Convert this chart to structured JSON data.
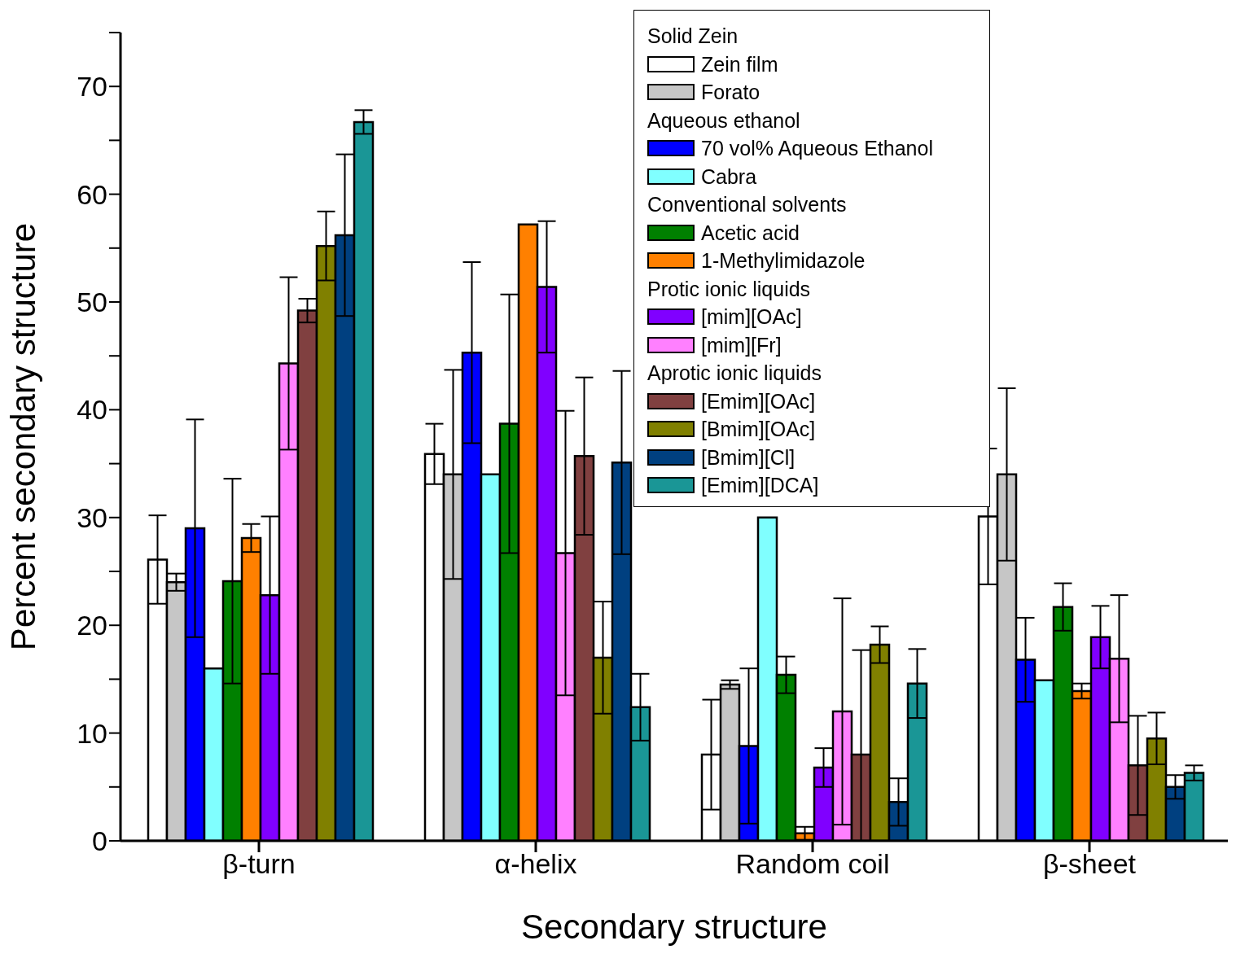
{
  "chart_data": {
    "type": "bar",
    "xlabel": "Secondary structure",
    "ylabel": "Percent secondary structure",
    "categories": [
      "β-turn",
      "α-helix",
      "Random coil",
      "β-sheet"
    ],
    "ylim": [
      0,
      75
    ],
    "yticks": [
      0,
      {
        "value": 5,
        "label": null
      },
      10,
      {
        "value": 15,
        "label": null
      },
      20,
      {
        "value": 25,
        "label": null
      },
      30,
      {
        "value": 35,
        "label": null
      },
      40,
      {
        "value": 45,
        "label": null
      },
      50,
      {
        "value": 55,
        "label": null
      },
      60,
      {
        "value": 65,
        "label": null
      },
      70,
      {
        "value": 75,
        "label": null
      }
    ],
    "legend": "top right",
    "annotations": [
      "Solid Zein",
      "Aqueous ethanol",
      "Conventional solvents",
      "Protic ionic liquids",
      "Aprotic ionic liquids"
    ],
    "series": [
      {
        "name": "Zein film",
        "color": "#ffffff",
        "values": [
          26.1,
          35.9,
          8.0,
          30.1
        ],
        "errors": [
          4.1,
          2.8,
          5.1,
          6.3
        ]
      },
      {
        "name": "Forato",
        "color": "#c6c6c6",
        "values": [
          24.0,
          34.0,
          14.5,
          34.0
        ],
        "errors": [
          0.8,
          9.7,
          0.4,
          8.0
        ]
      },
      {
        "name": "70 vol% Aqueous Ethanol",
        "color": "#0000ff",
        "values": [
          29.0,
          45.3,
          8.8,
          16.8
        ],
        "errors": [
          10.1,
          8.4,
          7.2,
          3.9
        ]
      },
      {
        "name": "Cabra",
        "color": "#80ffff",
        "values": [
          16.0,
          34.0,
          30.0,
          14.9
        ],
        "errors": [
          null,
          null,
          null,
          null
        ]
      },
      {
        "name": "Acetic acid",
        "color": "#008000",
        "values": [
          24.1,
          38.7,
          15.4,
          21.7
        ],
        "errors": [
          9.5,
          12.0,
          1.7,
          2.2
        ]
      },
      {
        "name": "1-Methylimidazole",
        "color": "#ff8000",
        "values": [
          28.1,
          57.2,
          0.7,
          13.9
        ],
        "errors": [
          1.3,
          null,
          0.6,
          0.7
        ]
      },
      {
        "name": "[mim][OAc]",
        "color": "#8000ff",
        "values": [
          22.8,
          51.4,
          6.8,
          18.9
        ],
        "errors": [
          7.3,
          6.1,
          1.8,
          2.9
        ]
      },
      {
        "name": "[mim][Fr]",
        "color": "#ff80ff",
        "values": [
          44.3,
          26.7,
          12.0,
          16.9
        ],
        "errors": [
          8.0,
          13.2,
          10.5,
          5.9
        ]
      },
      {
        "name": "[Emim][OAc]",
        "color": "#804040",
        "values": [
          49.2,
          35.7,
          8.0,
          7.0
        ],
        "errors": [
          1.1,
          7.3,
          [
            0,
            17.7
          ],
          4.6
        ]
      },
      {
        "name": "[Bmim][OAc]",
        "color": "#808000",
        "values": [
          55.2,
          17.0,
          18.2,
          9.5
        ],
        "errors": [
          3.2,
          5.2,
          1.7,
          2.4
        ]
      },
      {
        "name": "[Bmim][Cl]",
        "color": "#004080",
        "values": [
          56.2,
          35.1,
          3.6,
          5.0
        ],
        "errors": [
          7.5,
          8.5,
          2.2,
          1.1
        ]
      },
      {
        "name": "[Emim][DCA]",
        "color": "#1a9696",
        "values": [
          66.7,
          12.4,
          14.6,
          6.3
        ],
        "errors": [
          1.1,
          3.1,
          3.2,
          0.7
        ]
      }
    ]
  }
}
